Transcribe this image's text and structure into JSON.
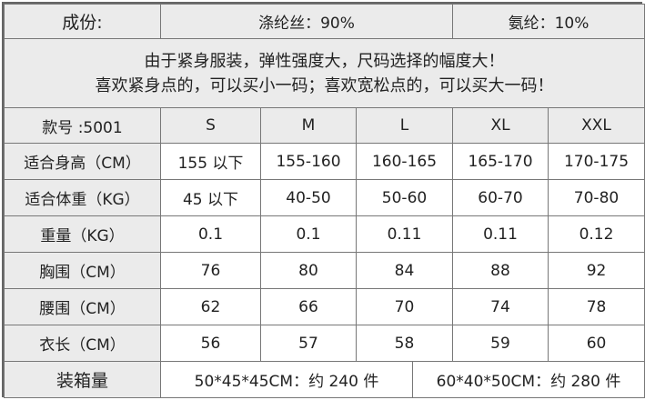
{
  "composition": {
    "label": "成份:",
    "polyester": "涤纶丝：90%",
    "spandex": "氨纶：10%"
  },
  "notes": [
    "由于紧身服装，弹性强度大，尺码选择的幅度大！",
    "喜欢紧身点的，可以买小一码；喜欢宽松点的，可以买大一码！"
  ],
  "header": {
    "model": "款号 :5001",
    "sizes": [
      "S",
      "M",
      "L",
      "XL",
      "XXL"
    ]
  },
  "rows": [
    {
      "label": "适合身高（CM）",
      "values": [
        "155 以下",
        "155-160",
        "160-165",
        "165-170",
        "170-175"
      ]
    },
    {
      "label": "适合体重（KG）",
      "values": [
        "45 以下",
        "40-50",
        "50-60",
        "60-70",
        "70-80"
      ]
    },
    {
      "label": "重量（KG）",
      "values": [
        "0.1",
        "0.1",
        "0.11",
        "0.11",
        "0.12"
      ]
    },
    {
      "label": "胸围（CM）",
      "values": [
        "76",
        "80",
        "84",
        "88",
        "92"
      ]
    },
    {
      "label": "腰围（CM）",
      "values": [
        "62",
        "66",
        "70",
        "74",
        "78"
      ]
    },
    {
      "label": "衣长（CM）",
      "values": [
        "56",
        "57",
        "58",
        "59",
        "60"
      ]
    }
  ],
  "packing": {
    "label": "装箱量",
    "box1": "50*45*45CM：约 240 件",
    "box2": "60*40*50CM：约 280 件"
  }
}
